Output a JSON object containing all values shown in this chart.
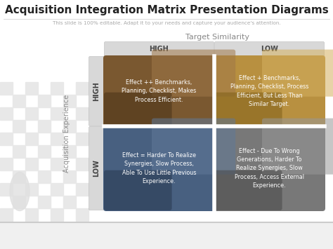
{
  "title": "Acquisition Integration Matrix Presentation Diagrams",
  "subtitle": "This slide is 100% editable. Adapt it to your needs and capture your audience's attention.",
  "x_axis_label": "Target Similarity",
  "y_axis_label": "Acquisition Experience",
  "col_headers": [
    "HIGH",
    "LOW"
  ],
  "row_headers": [
    "HIGH",
    "LOW"
  ],
  "cells": [
    {
      "row": 0,
      "col": 0,
      "text": "Effect ++ Benchmarks,\nPlanning, Checklist, Makes\nProcess Efficient.",
      "color_base": "#7a5830",
      "color_light": "#a07848",
      "color_dark": "#4a3318"
    },
    {
      "row": 0,
      "col": 1,
      "text": "Effect + Benchmarks,\nPlanning, Checklist, Process\nEfficient, But Less Than\nSimilar Target.",
      "color_base": "#b89040",
      "color_light": "#d4b060",
      "color_dark": "#806018"
    },
    {
      "row": 1,
      "col": 0,
      "text": "Effect = Harder To Realize\nSynergies, Slow Process,\nAble To Use Little Previous\nExperience.",
      "color_base": "#486080",
      "color_light": "#607898",
      "color_dark": "#283850"
    },
    {
      "row": 1,
      "col": 1,
      "text": "Effect - Due To Wrong\nGenerations, Harder To\nRealize Synergies, Slow\nProcess, Access External\nExperience.",
      "color_base": "#787878",
      "color_light": "#989898",
      "color_dark": "#484848"
    }
  ],
  "bg_color": "#ffffff",
  "header_bg": "#d8d8d8",
  "header_text_color": "#444444",
  "row_header_bg": "#d8d8d8",
  "cell_text_color": "#ffffff",
  "title_color": "#222222",
  "subtitle_color": "#aaaaaa",
  "axis_label_color": "#888888",
  "checker_color": "#e8e8e8",
  "separator_color": "#ffffff",
  "title_fontsize": 11,
  "subtitle_fontsize": 5.2,
  "header_fontsize": 7,
  "cell_fontsize": 5.8,
  "axis_label_fontsize": 7
}
